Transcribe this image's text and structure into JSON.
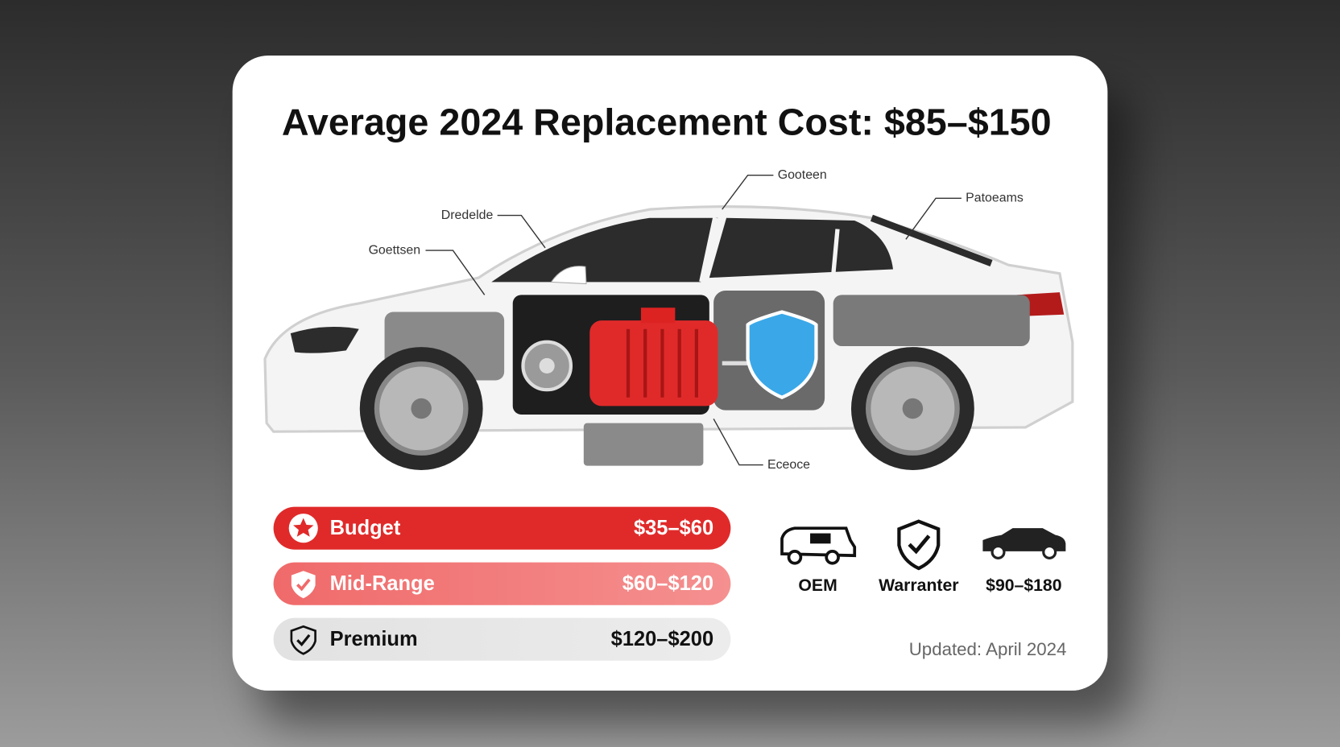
{
  "card": {
    "title": "Average 2024 Replacement Cost: $85–$150",
    "diagram_labels": [
      "Gooteen",
      "Patoeams",
      "Dredelde",
      "Goettsen",
      "Eceoce"
    ],
    "tiers": [
      {
        "name": "Budget",
        "price": "$35–$60"
      },
      {
        "name": "Mid-Range",
        "price": "$60–$120"
      },
      {
        "name": "Premium",
        "price": "$120–$200"
      }
    ],
    "badges": [
      {
        "label": "OEM"
      },
      {
        "label": "Warranter"
      },
      {
        "label": "$90–$180"
      }
    ],
    "updated": "Updated: April 2024"
  }
}
